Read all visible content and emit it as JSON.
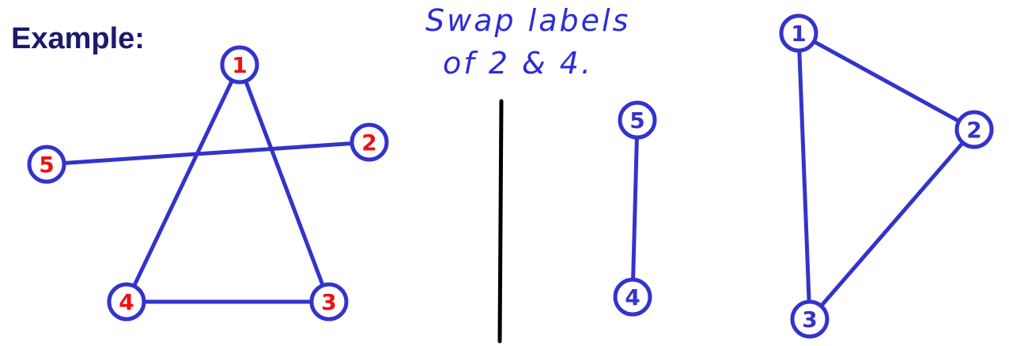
{
  "title": "Example:",
  "note": {
    "line1": "Swap labels",
    "line2": "of 2 & 4."
  },
  "colors": {
    "edge": "#3333cc",
    "node_outline": "#3333cc",
    "label_left": "#ee1111",
    "label_right": "#3333cc",
    "divider": "#000000",
    "title": "#1a1a6e"
  },
  "left_graph": {
    "nodes": [
      {
        "id": "1",
        "label": "1"
      },
      {
        "id": "2",
        "label": "2"
      },
      {
        "id": "3",
        "label": "3"
      },
      {
        "id": "4",
        "label": "4"
      },
      {
        "id": "5",
        "label": "5"
      }
    ],
    "edges": [
      [
        "1",
        "4"
      ],
      [
        "1",
        "3"
      ],
      [
        "4",
        "3"
      ],
      [
        "5",
        "2"
      ]
    ]
  },
  "right_graph": {
    "nodes": [
      {
        "id": "1",
        "label": "1"
      },
      {
        "id": "2",
        "label": "2"
      },
      {
        "id": "3",
        "label": "3"
      },
      {
        "id": "4",
        "label": "4"
      },
      {
        "id": "5",
        "label": "5"
      }
    ],
    "edges": [
      [
        "1",
        "2"
      ],
      [
        "1",
        "3"
      ],
      [
        "2",
        "3"
      ],
      [
        "5",
        "4"
      ]
    ]
  }
}
